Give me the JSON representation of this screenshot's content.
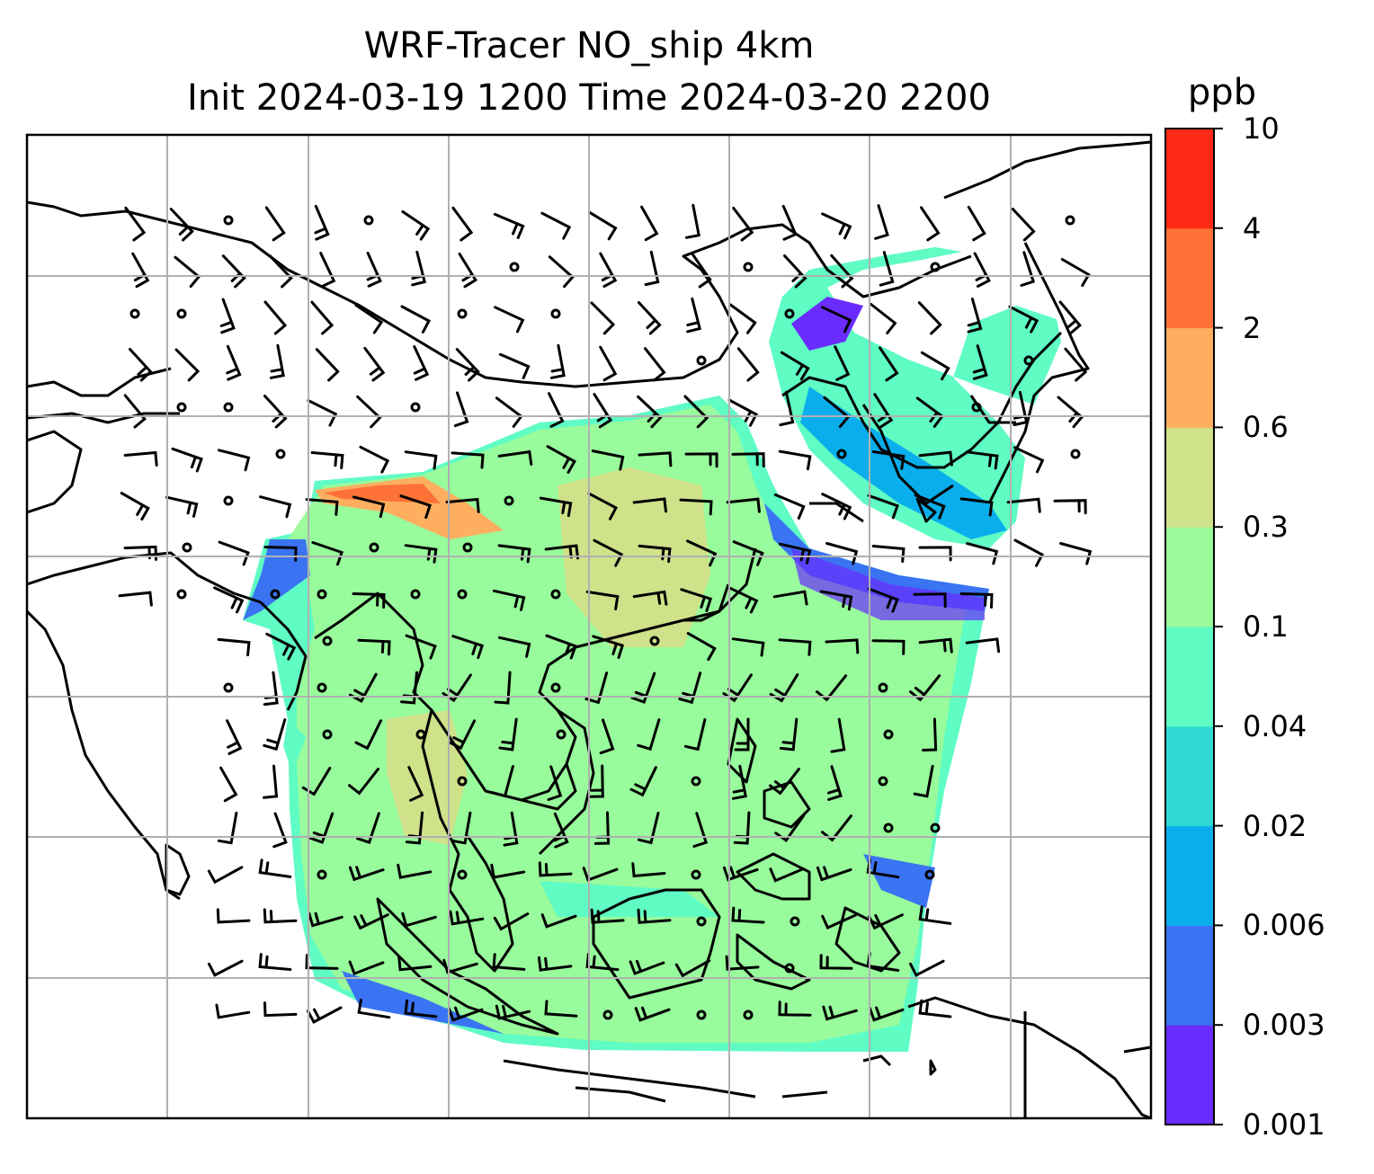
{
  "title": {
    "line1": "WRF-Tracer NO_ship 4km",
    "line2": "Init 2024-03-19 1200 Time 2024-03-20 2200"
  },
  "colorbar": {
    "units": "ppb",
    "levels": [
      "0.001",
      "0.003",
      "0.006",
      "0.02",
      "0.04",
      "0.1",
      "0.3",
      "0.6",
      "2",
      "4",
      "10"
    ],
    "colors": [
      "#6a2cfd",
      "#3a74f2",
      "#0aaeec",
      "#2fd9d3",
      "#5ffcc4",
      "#9bfb9a",
      "#cfe189",
      "#fdaf5f",
      "#fe7237",
      "#fd2a17"
    ]
  },
  "map": {
    "gridlines": true,
    "features": [
      "coastlines",
      "country-borders",
      "wind-barbs",
      "tracer-shading"
    ]
  }
}
